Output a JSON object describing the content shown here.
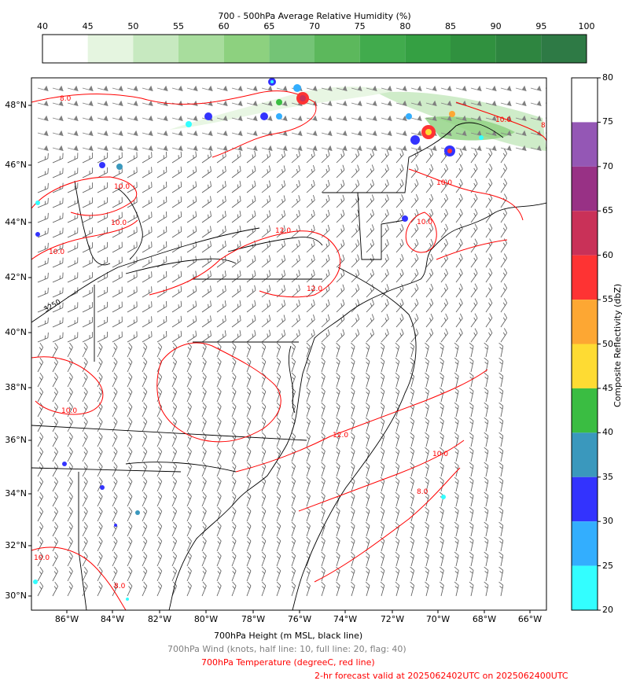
{
  "rh_colorbar": {
    "title": "700 - 500hPa Average Relative Humidity (%)",
    "ticks": [
      "40",
      "45",
      "50",
      "55",
      "60",
      "65",
      "70",
      "75",
      "80",
      "85",
      "90",
      "95",
      "100"
    ],
    "colors": [
      "#ffffff",
      "#e5f5e0",
      "#c7e9c0",
      "#a8dd9d",
      "#8dd17f",
      "#74c476",
      "#5cb85c",
      "#41ab4d",
      "#35a043",
      "#30913f",
      "#2e8540",
      "#2e7a45",
      "#34704c"
    ]
  },
  "refl_colorbar": {
    "label": "Composite Reflectivity (dbZ)",
    "ticks": [
      "80",
      "75",
      "70",
      "65",
      "60",
      "55",
      "50",
      "45",
      "40",
      "35",
      "30",
      "25",
      "20"
    ],
    "colors": [
      "#ffffff",
      "#9457b5",
      "#983185",
      "#c93158",
      "#fe3333",
      "#fda733",
      "#fedb33",
      "#3abd42",
      "#3a98bd",
      "#3333fe",
      "#33aefe",
      "#33feff"
    ]
  },
  "map": {
    "lat_labels": [
      "48°N",
      "46°N",
      "44°N",
      "42°N",
      "40°N",
      "38°N",
      "36°N",
      "34°N",
      "32°N",
      "30°N"
    ],
    "lon_labels": [
      "86°W",
      "84°W",
      "82°W",
      "80°W",
      "78°W",
      "76°W",
      "74°W",
      "72°W",
      "70°W",
      "68°W",
      "66°W"
    ],
    "contour_labels": [
      "8.0",
      "10.0",
      "10.0",
      "10.0",
      "10.0",
      "12.0",
      "12.0",
      "10.0",
      "10.0",
      "10.0",
      "12.0",
      "10.0",
      "8.0",
      "8.0",
      "8.0",
      "10.0"
    ],
    "height_label": "3250"
  },
  "captions": {
    "height": "700hPa Height (m MSL, black line)",
    "wind": "700hPa Wind (knots, half line: 10, full line: 20, flag: 40)",
    "temp": "700hPa Temperature (degreeC, red line)",
    "valid": "2-hr forecast valid at 2025062402UTC on 2025062400UTC"
  },
  "colors": {
    "temp": "#ff0000",
    "wind": "#808080",
    "height": "#000000"
  }
}
